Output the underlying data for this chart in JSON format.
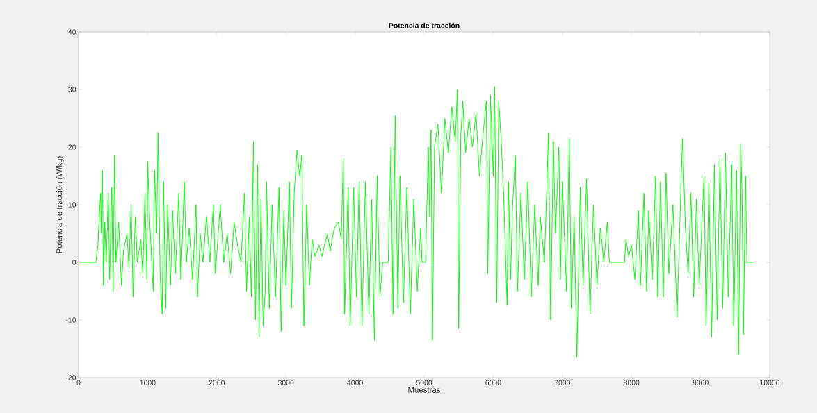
{
  "chart_data": {
    "type": "line",
    "title": "**Potencia de tracción**",
    "xlabel": "Muestras",
    "ylabel": "Potencia de tracción (W/kg)",
    "xlim": [
      0,
      10000
    ],
    "ylim": [
      -20,
      40
    ],
    "xticks": [
      0,
      1000,
      2000,
      3000,
      4000,
      5000,
      6000,
      7000,
      8000,
      9000,
      10000
    ],
    "yticks": [
      -20,
      -10,
      0,
      10,
      20,
      30,
      40
    ],
    "grid": false,
    "marker": "none",
    "line_style": "solid",
    "series": [
      {
        "color": "#00ff00",
        "x": [
          30,
          250,
          280,
          300,
          320,
          330,
          345,
          360,
          380,
          400,
          430,
          450,
          480,
          500,
          520,
          540,
          580,
          620,
          650,
          700,
          730,
          760,
          790,
          820,
          850,
          900,
          930,
          960,
          990,
          1000,
          1030,
          1080,
          1100,
          1130,
          1150,
          1180,
          1210,
          1230,
          1260,
          1290,
          1330,
          1360,
          1400,
          1450,
          1480,
          1530,
          1560,
          1600,
          1650,
          1700,
          1720,
          1760,
          1800,
          1850,
          1900,
          1950,
          1980,
          2050,
          2100,
          2150,
          2200,
          2250,
          2300,
          2350,
          2400,
          2430,
          2470,
          2500,
          2530,
          2560,
          2590,
          2610,
          2640,
          2670,
          2700,
          2720,
          2760,
          2800,
          2850,
          2900,
          2930,
          2970,
          3000,
          3050,
          3080,
          3120,
          3160,
          3200,
          3230,
          3260,
          3300,
          3340,
          3380,
          3420,
          3480,
          3520,
          3600,
          3640,
          3700,
          3760,
          3800,
          3830,
          3850,
          3900,
          3930,
          3980,
          4020,
          4060,
          4100,
          4150,
          4200,
          4240,
          4280,
          4320,
          4360,
          4400,
          4480,
          4520,
          4550,
          4580,
          4620,
          4650,
          4700,
          4750,
          4800,
          4850,
          4900,
          4950,
          4970,
          5020,
          5060,
          5080,
          5100,
          5120,
          5150,
          5200,
          5250,
          5300,
          5350,
          5400,
          5450,
          5480,
          5500,
          5530,
          5560,
          5600,
          5650,
          5700,
          5750,
          5800,
          5850,
          5900,
          5920,
          5960,
          6000,
          6020,
          6050,
          6080,
          6120,
          6150,
          6200,
          6220,
          6250,
          6280,
          6320,
          6350,
          6400,
          6450,
          6500,
          6550,
          6600,
          6650,
          6680,
          6740,
          6800,
          6830,
          6870,
          6900,
          6950,
          6970,
          7000,
          7060,
          7100,
          7130,
          7170,
          7210,
          7260,
          7300,
          7350,
          7400,
          7450,
          7500,
          7550,
          7600,
          7650,
          7680,
          7900,
          7920,
          7960,
          8000,
          8050,
          8100,
          8130,
          8180,
          8220,
          8250,
          8300,
          8350,
          8380,
          8420,
          8460,
          8500,
          8540,
          8600,
          8660,
          8720,
          8740,
          8780,
          8820,
          8860,
          8900,
          8940,
          8980,
          9050,
          9080,
          9120,
          9160,
          9200,
          9240,
          9280,
          9320,
          9360,
          9400,
          9450,
          9480,
          9520,
          9550,
          9580,
          9600,
          9620,
          9650,
          9670,
          9760
        ],
        "values": [
          0,
          0,
          3,
          8,
          12,
          5,
          16,
          -4,
          7,
          0,
          12,
          -3,
          13,
          -5,
          18.5,
          0,
          7,
          -4,
          2,
          5,
          -1,
          10,
          -6,
          8,
          0,
          4,
          -2,
          12,
          -3,
          17.5,
          7,
          -5,
          16,
          5,
          22.5,
          -2,
          -9,
          14,
          -8,
          10,
          -4,
          9,
          -2,
          12,
          -3,
          14,
          0,
          6,
          -3,
          10,
          -6,
          5,
          0,
          8,
          0,
          10,
          -2,
          10,
          0,
          5,
          -2,
          7,
          3,
          0,
          12,
          -5,
          8,
          -6,
          21,
          -10,
          17,
          -13,
          11,
          -11,
          -5,
          14,
          -8,
          10,
          -6,
          13,
          -12,
          9,
          -4,
          14,
          -8,
          12,
          19.5,
          15,
          18.5,
          -11,
          10,
          -4,
          4,
          1,
          3,
          1,
          5,
          2,
          6,
          7,
          4,
          18,
          -9,
          13,
          -11,
          13,
          -6,
          14,
          -11,
          14,
          -9,
          11,
          -13.5,
          15,
          -6,
          0,
          0,
          20,
          -9,
          25.5,
          -8,
          15,
          -7,
          13,
          -9,
          11,
          -5,
          6,
          0,
          0,
          20,
          8,
          23,
          -13.5,
          20,
          24,
          12,
          25,
          19,
          27,
          21,
          30,
          -11.5,
          22,
          28,
          19,
          25,
          20,
          26,
          15,
          22,
          28,
          -2,
          29,
          15,
          30.5,
          -7,
          28,
          20,
          12,
          -7.5,
          14,
          -3,
          10,
          18.5,
          -5,
          12,
          -3,
          14,
          -6,
          10,
          -4,
          8,
          0,
          22.5,
          -10,
          21,
          5,
          20,
          -3,
          14,
          -5,
          21.5,
          -8,
          8,
          -16.5,
          13,
          -4,
          14.5,
          -9,
          10,
          -4,
          6,
          0,
          7,
          0,
          0,
          4,
          1,
          3,
          -3,
          9,
          -4,
          12,
          -5,
          9,
          -3,
          15,
          -6,
          14,
          -6,
          15.5,
          -2,
          10,
          -9.5,
          15,
          21.5,
          6,
          -2,
          12,
          -6,
          11,
          -4,
          15,
          -11,
          14,
          -13,
          17,
          -10,
          18,
          -8,
          19,
          -6,
          17,
          -11,
          16,
          -16,
          20.5,
          12,
          -12.5,
          15,
          0,
          0
        ]
      }
    ]
  }
}
